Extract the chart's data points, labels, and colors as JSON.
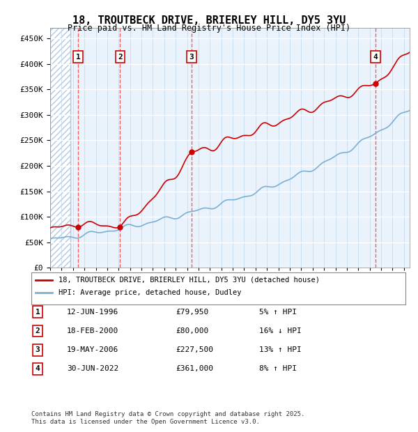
{
  "title": "18, TROUTBECK DRIVE, BRIERLEY HILL, DY5 3YU",
  "subtitle": "Price paid vs. HM Land Registry's House Price Index (HPI)",
  "ylim": [
    0,
    470000
  ],
  "yticks": [
    0,
    50000,
    100000,
    150000,
    200000,
    250000,
    300000,
    350000,
    400000,
    450000
  ],
  "ytick_labels": [
    "£0",
    "£50K",
    "£100K",
    "£150K",
    "£200K",
    "£250K",
    "£300K",
    "£350K",
    "£400K",
    "£450K"
  ],
  "xlim_start": 1994.0,
  "xlim_end": 2025.5,
  "sale_dates": [
    1996.44,
    2000.12,
    2006.38,
    2022.5
  ],
  "sale_prices": [
    79950,
    80000,
    227500,
    361000
  ],
  "sale_labels": [
    "1",
    "2",
    "3",
    "4"
  ],
  "red_line_color": "#cc0000",
  "hpi_line_color": "#7ab0d4",
  "legend_entries": [
    "18, TROUTBECK DRIVE, BRIERLEY HILL, DY5 3YU (detached house)",
    "HPI: Average price, detached house, Dudley"
  ],
  "table_entries": [
    {
      "label": "1",
      "date": "12-JUN-1996",
      "price": "£79,950",
      "hpi": "5% ↑ HPI"
    },
    {
      "label": "2",
      "date": "18-FEB-2000",
      "price": "£80,000",
      "hpi": "16% ↓ HPI"
    },
    {
      "label": "3",
      "date": "19-MAY-2006",
      "price": "£227,500",
      "hpi": "13% ↑ HPI"
    },
    {
      "label": "4",
      "date": "30-JUN-2022",
      "price": "£361,000",
      "hpi": "8% ↑ HPI"
    }
  ],
  "footer": "Contains HM Land Registry data © Crown copyright and database right 2025.\nThis data is licensed under the Open Government Licence v3.0.",
  "plot_bg": "#eaf2fb",
  "hatch_color": "#b0c8e0"
}
